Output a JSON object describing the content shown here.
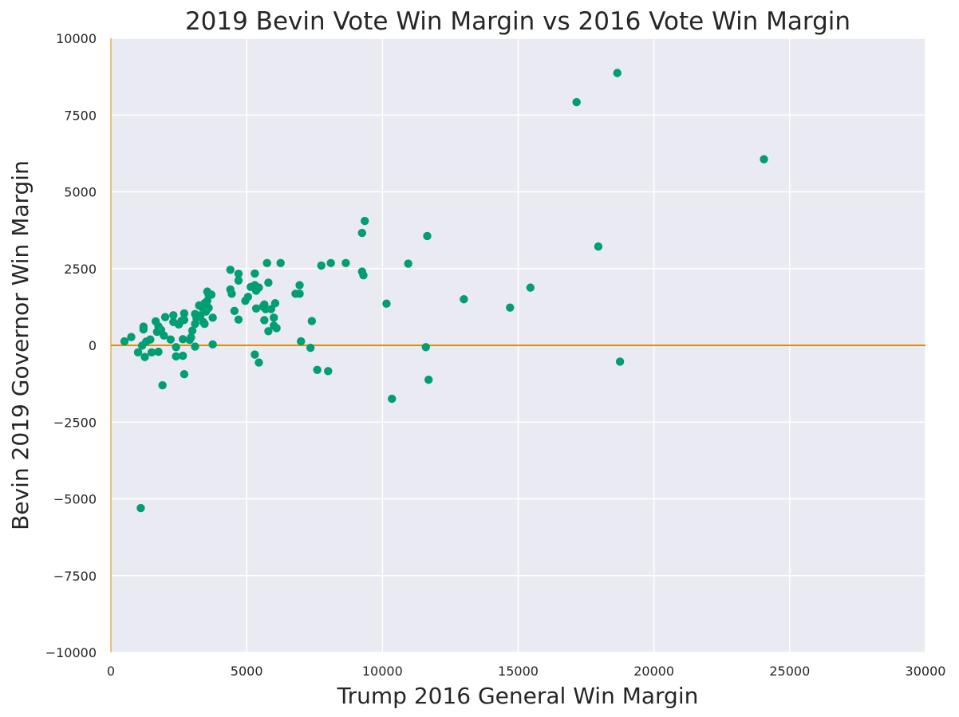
{
  "chart_data": {
    "type": "scatter",
    "title": "2019 Bevin Vote Win Margin vs 2016 Vote Win Margin",
    "xlabel": "Trump 2016 General Win Margin",
    "ylabel": "Bevin 2019 Governor Win Margin",
    "xlim": [
      0,
      30000
    ],
    "ylim": [
      -10000,
      10000
    ],
    "xticks": [
      0,
      5000,
      10000,
      15000,
      20000,
      25000,
      30000
    ],
    "yticks": [
      -10000,
      -7500,
      -5000,
      -2500,
      0,
      2500,
      5000,
      7500,
      10000
    ],
    "x_tick_labels": [
      "0",
      "5000",
      "10000",
      "15000",
      "20000",
      "25000",
      "30000"
    ],
    "y_tick_labels": [
      "−10000",
      "−7500",
      "−5000",
      "−2500",
      "0",
      "2500",
      "5000",
      "7500",
      "10000"
    ],
    "grid": true,
    "background_color": "#eaeaf2",
    "grid_color": "#ffffff",
    "point_color": "#029e73",
    "reference_line_color": "#de8f05",
    "reference_line_y": 0,
    "points": [
      [
        500,
        130
      ],
      [
        750,
        270
      ],
      [
        1000,
        -230
      ],
      [
        1100,
        -5300
      ],
      [
        1150,
        -10
      ],
      [
        1200,
        520
      ],
      [
        1200,
        610
      ],
      [
        1250,
        -380
      ],
      [
        1300,
        120
      ],
      [
        1450,
        190
      ],
      [
        1500,
        -230
      ],
      [
        1650,
        780
      ],
      [
        1700,
        440
      ],
      [
        1750,
        620
      ],
      [
        1750,
        -210
      ],
      [
        1850,
        500
      ],
      [
        1900,
        -1300
      ],
      [
        1950,
        320
      ],
      [
        2000,
        920
      ],
      [
        2200,
        190
      ],
      [
        2300,
        760
      ],
      [
        2300,
        980
      ],
      [
        2400,
        -360
      ],
      [
        2400,
        -60
      ],
      [
        2500,
        680
      ],
      [
        2600,
        800
      ],
      [
        2650,
        200
      ],
      [
        2650,
        -340
      ],
      [
        2700,
        1040
      ],
      [
        2700,
        830
      ],
      [
        2700,
        -940
      ],
      [
        2900,
        180
      ],
      [
        2950,
        260
      ],
      [
        3000,
        480
      ],
      [
        3100,
        1020
      ],
      [
        3100,
        700
      ],
      [
        3100,
        -40
      ],
      [
        3150,
        900
      ],
      [
        3250,
        1300
      ],
      [
        3300,
        980
      ],
      [
        3350,
        1240
      ],
      [
        3400,
        760
      ],
      [
        3450,
        1370
      ],
      [
        3450,
        700
      ],
      [
        3500,
        1150
      ],
      [
        3500,
        1100
      ],
      [
        3550,
        1750
      ],
      [
        3550,
        1450
      ],
      [
        3600,
        1650
      ],
      [
        3600,
        1220
      ],
      [
        3700,
        1650
      ],
      [
        3750,
        900
      ],
      [
        3750,
        30
      ],
      [
        4400,
        1820
      ],
      [
        4400,
        2460
      ],
      [
        4450,
        1680
      ],
      [
        4550,
        1120
      ],
      [
        4700,
        2330
      ],
      [
        4700,
        2110
      ],
      [
        4700,
        840
      ],
      [
        4950,
        1450
      ],
      [
        5050,
        1580
      ],
      [
        5150,
        1900
      ],
      [
        5300,
        1960
      ],
      [
        5300,
        2340
      ],
      [
        5300,
        -300
      ],
      [
        5350,
        1780
      ],
      [
        5350,
        1200
      ],
      [
        5450,
        -560
      ],
      [
        5450,
        1880
      ],
      [
        5600,
        1260
      ],
      [
        5650,
        1330
      ],
      [
        5650,
        820
      ],
      [
        5700,
        1180
      ],
      [
        5750,
        2680
      ],
      [
        5800,
        2040
      ],
      [
        5800,
        460
      ],
      [
        5900,
        1180
      ],
      [
        6000,
        900
      ],
      [
        6000,
        640
      ],
      [
        6050,
        1370
      ],
      [
        6100,
        560
      ],
      [
        6250,
        2680
      ],
      [
        6800,
        1680
      ],
      [
        6950,
        1960
      ],
      [
        6950,
        1680
      ],
      [
        7000,
        130
      ],
      [
        7350,
        -80
      ],
      [
        7400,
        790
      ],
      [
        7600,
        -800
      ],
      [
        7750,
        2600
      ],
      [
        8000,
        -840
      ],
      [
        8100,
        2680
      ],
      [
        8650,
        2680
      ],
      [
        9250,
        2400
      ],
      [
        9250,
        3660
      ],
      [
        9300,
        2280
      ],
      [
        9350,
        4050
      ],
      [
        10150,
        1360
      ],
      [
        10350,
        -1740
      ],
      [
        10950,
        2660
      ],
      [
        11600,
        -60
      ],
      [
        11650,
        3560
      ],
      [
        11700,
        -1120
      ],
      [
        13000,
        1500
      ],
      [
        14700,
        1230
      ],
      [
        15450,
        1880
      ],
      [
        17150,
        7920
      ],
      [
        17950,
        3220
      ],
      [
        18650,
        8870
      ],
      [
        18750,
        -530
      ],
      [
        24050,
        6060
      ]
    ]
  }
}
